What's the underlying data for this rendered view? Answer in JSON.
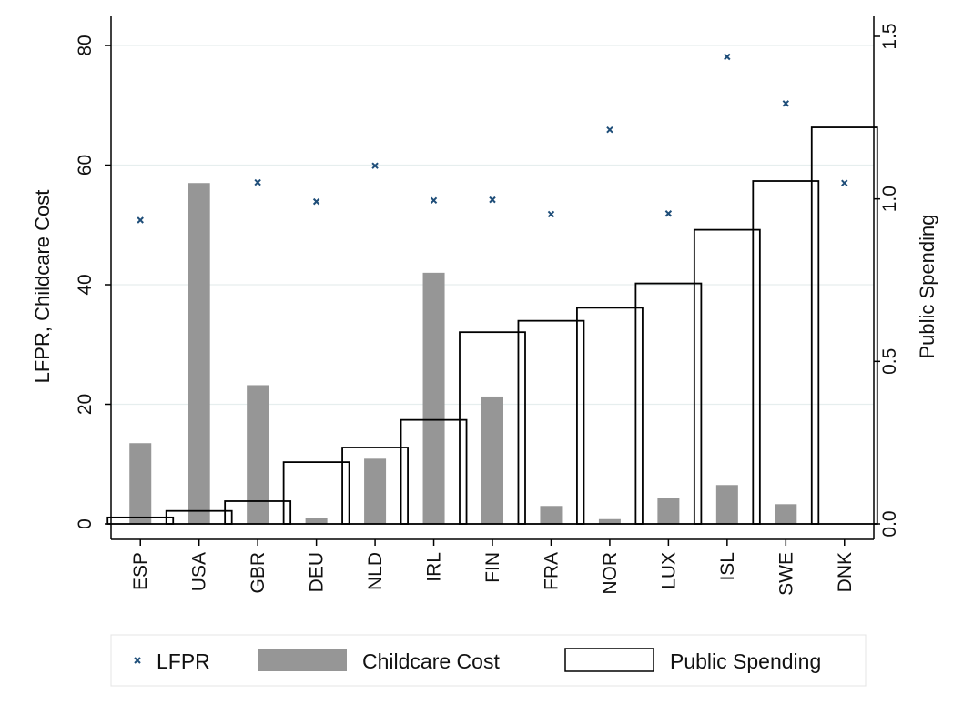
{
  "chart_data": {
    "type": "bar",
    "categories": [
      "ESP",
      "USA",
      "GBR",
      "DEU",
      "NLD",
      "IRL",
      "FIN",
      "FRA",
      "NOR",
      "LUX",
      "ISL",
      "SWE",
      "DNK"
    ],
    "series": [
      {
        "name": "LFPR",
        "kind": "scatter",
        "axis": "left",
        "color": "#1f4e79",
        "values": [
          50.8,
          null,
          57.1,
          53.9,
          59.9,
          54.1,
          54.2,
          51.8,
          65.9,
          51.9,
          78.1,
          70.3,
          57.0
        ]
      },
      {
        "name": "Childcare Cost",
        "kind": "bar",
        "axis": "left",
        "color": "#969696",
        "values": [
          13.5,
          57.0,
          23.2,
          1.0,
          10.9,
          42.0,
          21.3,
          3.0,
          0.8,
          4.4,
          6.5,
          3.3,
          0
        ]
      },
      {
        "name": "Public Spending",
        "kind": "bar-outline",
        "axis": "right",
        "color": "#000000",
        "values": [
          0.02,
          0.04,
          0.07,
          0.19,
          0.235,
          0.32,
          0.59,
          0.625,
          0.665,
          0.74,
          0.905,
          1.055,
          1.22
        ]
      }
    ],
    "ylabel": "LFPR, Childcare Cost",
    "y2label": "Public Spending",
    "ylim": [
      0,
      80
    ],
    "y2lim": [
      0,
      1.5
    ],
    "yticks": [
      "0",
      "20",
      "40",
      "60",
      "80"
    ],
    "y2ticks": [
      "0.0",
      "0.5",
      "1.0",
      "1.5"
    ],
    "grid": true,
    "legend_position": "bottom"
  }
}
